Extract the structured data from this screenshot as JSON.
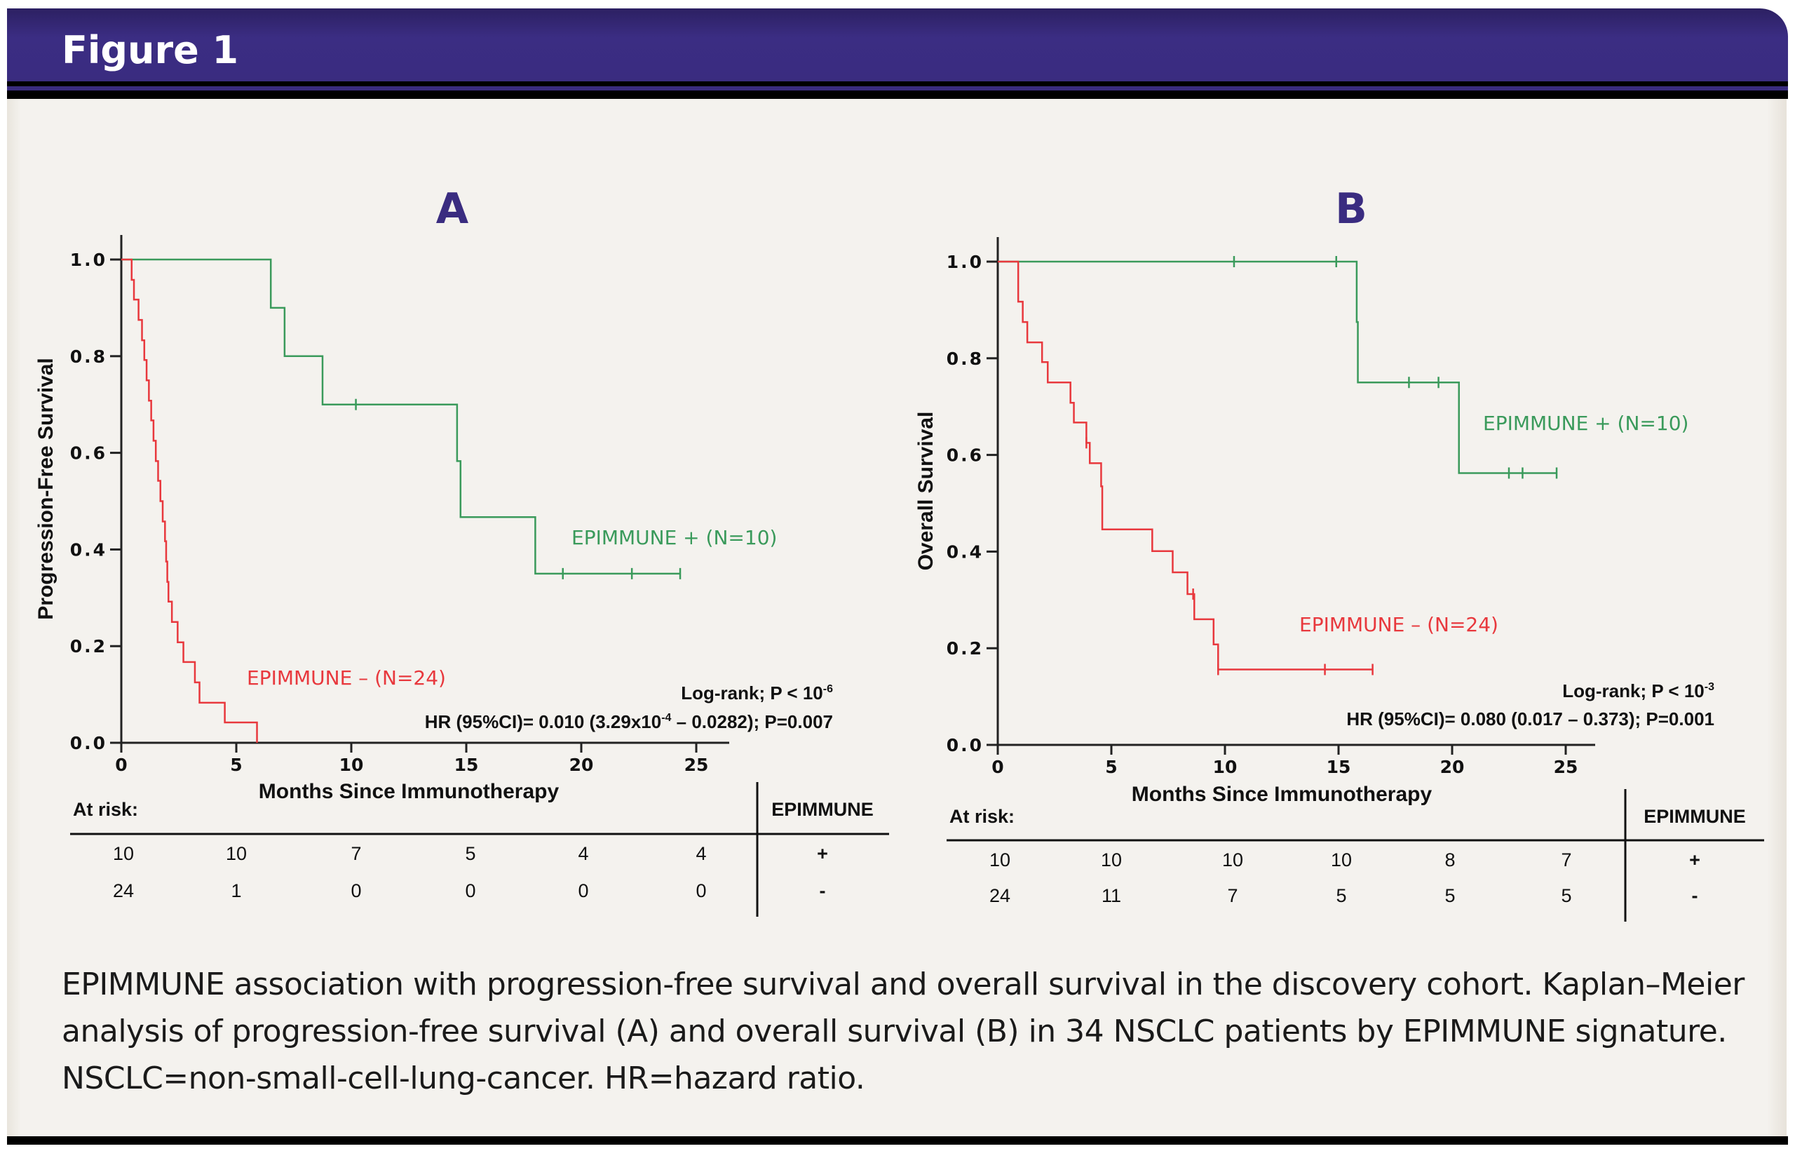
{
  "header": {
    "title": "Figure 1"
  },
  "caption": "EPIMMUNE association with progression-free survival and overall survival in the discovery cohort. Kaplan–Meier analysis of progression-free survival (A) and overall survival (B) in 34 NSCLC patients by EPIMMUNE signature. NSCLC=non-small-cell-lung-cancer. HR=hazard ratio.",
  "colors": {
    "positive": "#3a9a5b",
    "negative": "#e8383d",
    "panel_label": "#3a2c80",
    "header": "#3a2c80"
  },
  "chart_data": [
    {
      "type": "line",
      "subtype": "kaplan-meier",
      "panel_label": "A",
      "xlabel": "Months Since Immunotherapy",
      "ylabel": "Progression-Free Survival",
      "xlim": [
        0,
        25
      ],
      "ylim": [
        0,
        1
      ],
      "xticks": [
        "0",
        "5",
        "10",
        "15",
        "20",
        "25"
      ],
      "yticks": [
        "0.0",
        "0.2",
        "0.4",
        "0.6",
        "0.8",
        "1.0"
      ],
      "grid": false,
      "series": [
        {
          "name": "EPIMMUNE + (N=10)",
          "color": "#3a9a5b",
          "steps": [
            [
              0,
              1.0
            ],
            [
              6.5,
              0.9
            ],
            [
              7.1,
              0.8
            ],
            [
              8.75,
              0.7
            ],
            [
              14.6,
              0.583
            ],
            [
              14.75,
              0.467
            ],
            [
              18.0,
              0.35
            ]
          ],
          "end": 24.3,
          "censored": [
            [
              10.2,
              0.7
            ],
            [
              19.2,
              0.35
            ],
            [
              22.2,
              0.35
            ],
            [
              24.3,
              0.35
            ]
          ]
        },
        {
          "name": "EPIMMUNE – (N=24)",
          "color": "#e8383d",
          "steps": [
            [
              0,
              1.0
            ],
            [
              0.45,
              0.958
            ],
            [
              0.55,
              0.917
            ],
            [
              0.75,
              0.875
            ],
            [
              0.9,
              0.833
            ],
            [
              1.0,
              0.792
            ],
            [
              1.1,
              0.75
            ],
            [
              1.2,
              0.708
            ],
            [
              1.3,
              0.667
            ],
            [
              1.4,
              0.625
            ],
            [
              1.5,
              0.583
            ],
            [
              1.6,
              0.542
            ],
            [
              1.7,
              0.5
            ],
            [
              1.8,
              0.458
            ],
            [
              1.9,
              0.417
            ],
            [
              1.95,
              0.375
            ],
            [
              2.0,
              0.333
            ],
            [
              2.05,
              0.292
            ],
            [
              2.2,
              0.25
            ],
            [
              2.45,
              0.208
            ],
            [
              2.7,
              0.167
            ],
            [
              3.2,
              0.125
            ],
            [
              3.4,
              0.083
            ],
            [
              4.5,
              0.042
            ],
            [
              5.9,
              0.0
            ]
          ],
          "end": 5.9,
          "censored": []
        }
      ],
      "annotations": {
        "label_positive": "EPIMMUNE + (N=10)",
        "label_negative": "EPIMMUNE – (N=24)",
        "logrank_prefix": "Log-rank; P < 10",
        "logrank_exp": "-6",
        "hr_prefix": "HR (95%CI)= 0.010 (3.29x10",
        "hr_exp": "-4",
        "hr_suffix": " – 0.0282); P=0.007"
      },
      "at_risk": {
        "title": "At risk:",
        "group_header": "EPIMMUNE",
        "rows": [
          {
            "group": "+",
            "values": [
              "10",
              "10",
              "7",
              "5",
              "4",
              "4"
            ]
          },
          {
            "group": "-",
            "values": [
              "24",
              "1",
              "0",
              "0",
              "0",
              "0"
            ]
          }
        ]
      }
    },
    {
      "type": "line",
      "subtype": "kaplan-meier",
      "panel_label": "B",
      "xlabel": "Months Since Immunotherapy",
      "ylabel": "Overall Survival",
      "xlim": [
        0,
        25
      ],
      "ylim": [
        0,
        1
      ],
      "xticks": [
        "0",
        "5",
        "10",
        "15",
        "20",
        "25"
      ],
      "yticks": [
        "0.0",
        "0.2",
        "0.4",
        "0.6",
        "0.8",
        "1.0"
      ],
      "grid": false,
      "series": [
        {
          "name": "EPIMMUNE + (N=10)",
          "color": "#3a9a5b",
          "steps": [
            [
              0,
              1.0
            ],
            [
              15.8,
              0.875
            ],
            [
              15.85,
              0.75
            ],
            [
              20.3,
              0.5625
            ]
          ],
          "end": 24.6,
          "censored": [
            [
              10.4,
              1.0
            ],
            [
              14.9,
              1.0
            ],
            [
              18.1,
              0.75
            ],
            [
              19.4,
              0.75
            ],
            [
              22.5,
              0.5625
            ],
            [
              23.1,
              0.5625
            ],
            [
              24.6,
              0.5625
            ]
          ]
        },
        {
          "name": "EPIMMUNE – (N=24)",
          "color": "#e8383d",
          "steps": [
            [
              0,
              1.0
            ],
            [
              0.9,
              0.917
            ],
            [
              1.1,
              0.875
            ],
            [
              1.3,
              0.833
            ],
            [
              1.95,
              0.792
            ],
            [
              2.2,
              0.75
            ],
            [
              3.2,
              0.708
            ],
            [
              3.35,
              0.667
            ],
            [
              3.9,
              0.625
            ],
            [
              4.05,
              0.583
            ],
            [
              4.55,
              0.535
            ],
            [
              4.6,
              0.446
            ],
            [
              6.8,
              0.401
            ],
            [
              7.7,
              0.357
            ],
            [
              8.35,
              0.312
            ],
            [
              8.65,
              0.26
            ],
            [
              9.5,
              0.208
            ],
            [
              9.7,
              0.156
            ]
          ],
          "end": 16.5,
          "censored": [
            [
              3.9,
              0.625
            ],
            [
              8.6,
              0.312
            ],
            [
              9.7,
              0.156
            ],
            [
              14.4,
              0.156
            ],
            [
              16.5,
              0.156
            ]
          ]
        }
      ],
      "annotations": {
        "label_positive": "EPIMMUNE + (N=10)",
        "label_negative": "EPIMMUNE – (N=24)",
        "logrank_prefix": "Log-rank; P < 10",
        "logrank_exp": "-3",
        "hr_prefix": "HR (95%CI)= 0.080 (0.017 – 0.373); P=0.001",
        "hr_exp": "",
        "hr_suffix": ""
      },
      "at_risk": {
        "title": "At risk:",
        "group_header": "EPIMMUNE",
        "rows": [
          {
            "group": "+",
            "values": [
              "10",
              "10",
              "10",
              "10",
              "8",
              "7"
            ]
          },
          {
            "group": "-",
            "values": [
              "24",
              "11",
              "7",
              "5",
              "5",
              "5"
            ]
          }
        ]
      }
    }
  ]
}
